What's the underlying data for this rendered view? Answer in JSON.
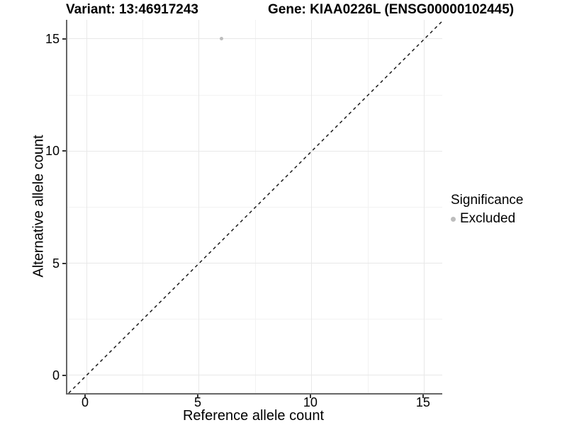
{
  "titles": {
    "left": "Variant: 13:46917243",
    "right": "Gene: KIAA0226L (ENSG00000102445)"
  },
  "chart_data": {
    "type": "scatter",
    "title_left": "Variant: 13:46917243",
    "title_right": "Gene: KIAA0226L (ENSG00000102445)",
    "xlabel": "Reference allele count",
    "ylabel": "Alternative allele count",
    "xlim": [
      -0.85,
      15.79
    ],
    "ylim": [
      -0.79,
      15.85
    ],
    "xticks": [
      0,
      5,
      10,
      15
    ],
    "yticks": [
      0,
      5,
      10,
      15
    ],
    "minor_xticks": [
      2.5,
      7.5,
      12.5
    ],
    "minor_yticks": [
      2.5,
      7.5,
      12.5
    ],
    "grid": "major+minor",
    "points": [
      {
        "x": 6,
        "y": 15,
        "series": "Excluded"
      }
    ],
    "identity_line": {
      "style": "dashed",
      "slope": 1,
      "intercept": 0
    },
    "legend": {
      "title": "Significance",
      "position": "right",
      "items": [
        {
          "label": "Excluded",
          "color": "#bdbdbd"
        }
      ]
    },
    "colors": {
      "excluded_point": "#bdbdbd",
      "axis_line": "#666666",
      "tick_mark": "#333333",
      "grid_major": "#e8e8e8",
      "grid_minor": "#f2f2f2",
      "dashed_line": "#1a1a1a",
      "background": "#ffffff"
    }
  }
}
